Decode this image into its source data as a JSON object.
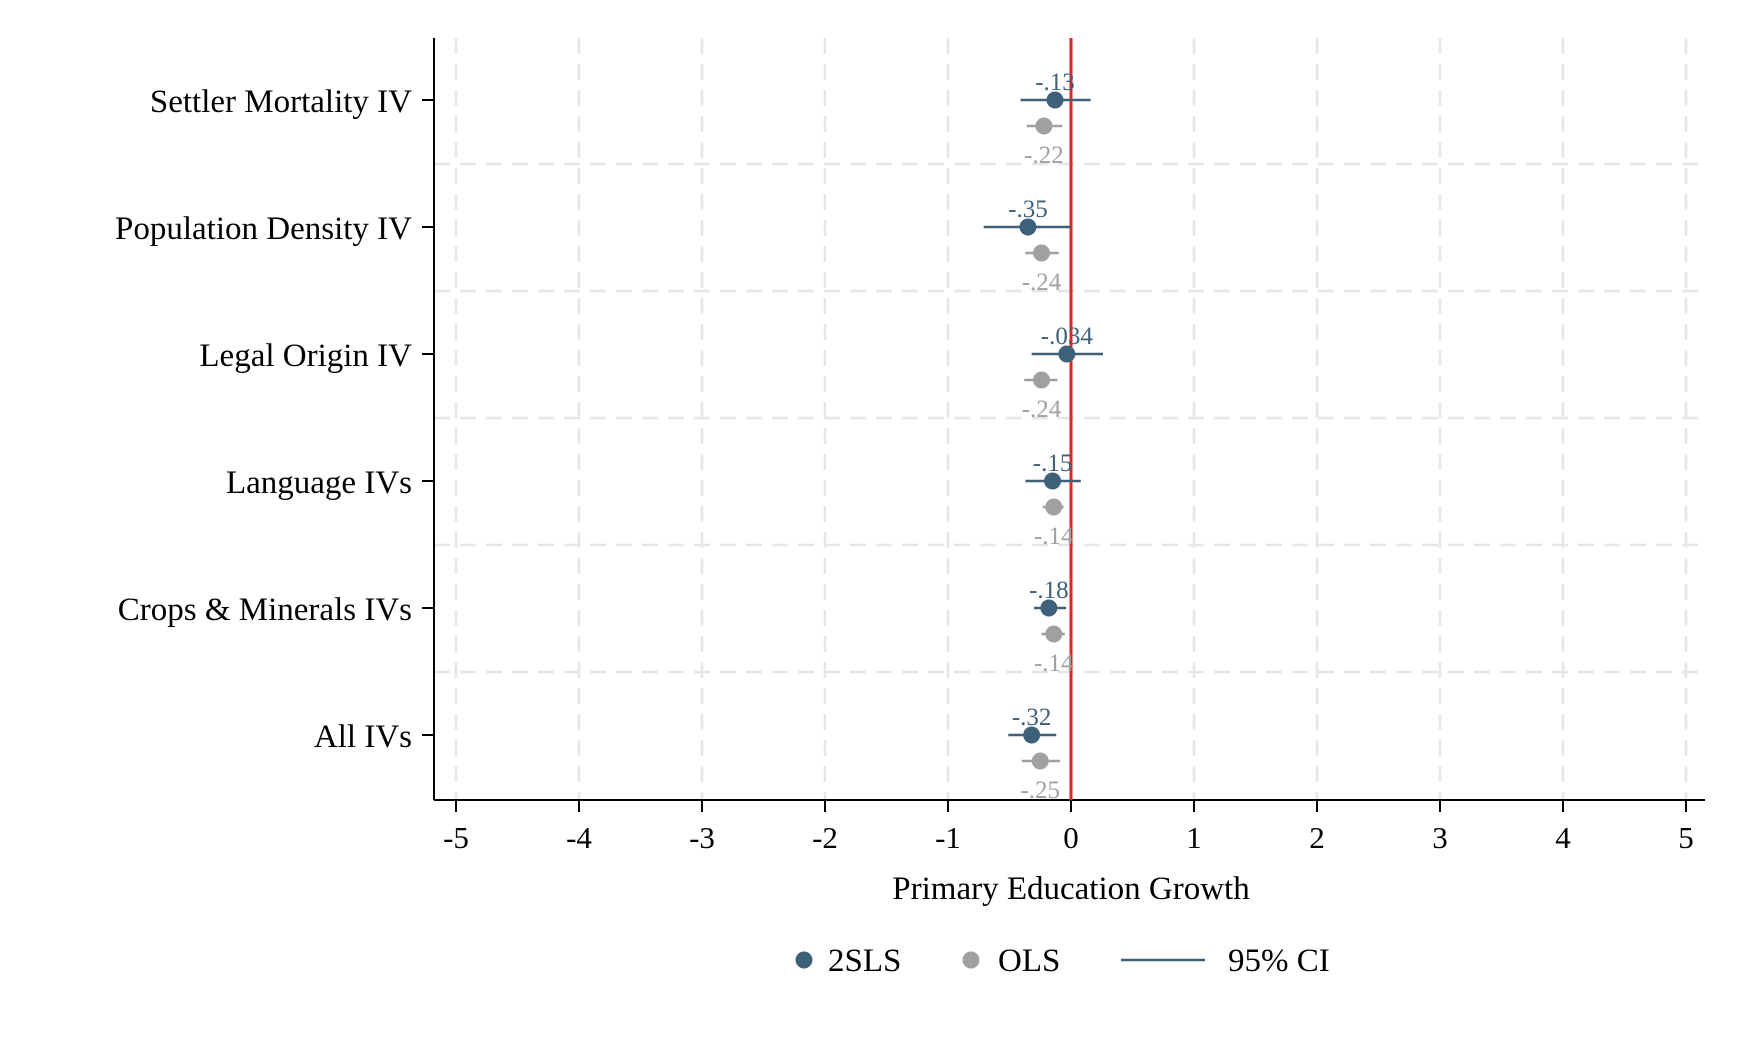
{
  "colors": {
    "twosls": "#3e6079",
    "ols": "#a0a0a0",
    "zero_line": "#e8231f",
    "grid": "#e6e6e6",
    "axis": "#000000"
  },
  "chart_data": {
    "type": "scatter",
    "subtype": "coefficient-plot-horizontal",
    "title": "",
    "xlabel": "Primary Education Growth",
    "ylabel": "",
    "xlim": [
      -5,
      5
    ],
    "xticks": [
      -5,
      -4,
      -3,
      -2,
      -1,
      0,
      1,
      2,
      3,
      4,
      5
    ],
    "xtick_labels": [
      "-5",
      "-4",
      "-3",
      "-2",
      "-1",
      "0",
      "1",
      "2",
      "3",
      "4",
      "5"
    ],
    "grid": true,
    "reference_line_x": 0,
    "legend_position": "bottom",
    "categories": [
      "Settler Mortality IV",
      "Population Density IV",
      "Legal Origin IV",
      "Language IVs",
      "Crops & Minerals IVs",
      "All IVs"
    ],
    "series": [
      {
        "name": "2SLS",
        "points": [
          {
            "value": -0.13,
            "ci": [
              -0.41,
              0.16
            ],
            "label": "-.13"
          },
          {
            "value": -0.35,
            "ci": [
              -0.71,
              0.0
            ],
            "label": "-.35"
          },
          {
            "value": -0.034,
            "ci": [
              -0.32,
              0.26
            ],
            "label": "-.034"
          },
          {
            "value": -0.15,
            "ci": [
              -0.37,
              0.08
            ],
            "label": "-.15"
          },
          {
            "value": -0.18,
            "ci": [
              -0.3,
              -0.04
            ],
            "label": "-.18"
          },
          {
            "value": -0.32,
            "ci": [
              -0.51,
              -0.12
            ],
            "label": "-.32"
          }
        ]
      },
      {
        "name": "OLS",
        "points": [
          {
            "value": -0.22,
            "ci": [
              -0.36,
              -0.07
            ],
            "label": "-.22"
          },
          {
            "value": -0.24,
            "ci": [
              -0.37,
              -0.1
            ],
            "label": "-.24"
          },
          {
            "value": -0.24,
            "ci": [
              -0.38,
              -0.11
            ],
            "label": "-.24"
          },
          {
            "value": -0.14,
            "ci": [
              -0.23,
              -0.06
            ],
            "label": "-.14"
          },
          {
            "value": -0.14,
            "ci": [
              -0.24,
              -0.05
            ],
            "label": "-.14"
          },
          {
            "value": -0.25,
            "ci": [
              -0.4,
              -0.09
            ],
            "label": "-.25"
          }
        ]
      }
    ],
    "legend": [
      {
        "label": "2SLS",
        "kind": "marker",
        "color": "#3e6079"
      },
      {
        "label": "OLS",
        "kind": "marker",
        "color": "#a0a0a0"
      },
      {
        "label": "95% CI",
        "kind": "line",
        "color": "#3e6079"
      }
    ]
  }
}
